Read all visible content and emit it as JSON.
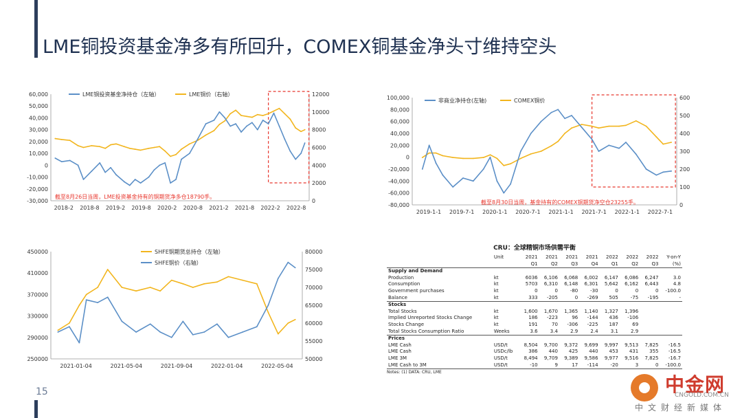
{
  "page": {
    "title": "LME铜投资基金净多有所回升，COMEX铜基金净头寸维持空头",
    "page_number": "15"
  },
  "colors": {
    "blue": "#5b8fc7",
    "gold": "#f2b51d",
    "red": "#e8372e",
    "navy": "#2d3e5c"
  },
  "chart_data": [
    {
      "type": "line",
      "legend": [
        "LME铜投资基金净持仓（左轴）",
        "LME铜价（右轴）"
      ],
      "annotation": "截至8月26日当周，LME投资基金持有的铜期货净多仓18790手。",
      "x_ticks": [
        "2018-2",
        "2018-8",
        "2019-2",
        "2019-8",
        "2020-2",
        "2020-8",
        "2021-2",
        "2021-8",
        "2022-2",
        "2022-8"
      ],
      "y_left_ticks": [
        "60,000",
        "50,000",
        "40,000",
        "30,000",
        "20,000",
        "10,000",
        "0",
        "-10,000",
        "-20,000",
        "-30,000"
      ],
      "y_right_ticks": [
        "12000",
        "10000",
        "8000",
        "6000",
        "4000",
        "2000",
        "0"
      ],
      "ylim_left": [
        -30000,
        60000
      ],
      "ylim_right": [
        0,
        12000
      ],
      "highlight_x": [
        2022.0,
        2022.67
      ],
      "series": [
        {
          "name": "LME铜投资基金净持仓（左轴）",
          "axis": "left",
          "x": [
            2018.08,
            2018.2,
            2018.35,
            2018.5,
            2018.6,
            2018.75,
            2018.9,
            2019.0,
            2019.1,
            2019.2,
            2019.35,
            2019.45,
            2019.55,
            2019.65,
            2019.8,
            2019.9,
            2020.0,
            2020.1,
            2020.2,
            2020.3,
            2020.4,
            2020.55,
            2020.7,
            2020.85,
            2021.0,
            2021.1,
            2021.2,
            2021.3,
            2021.4,
            2021.5,
            2021.6,
            2021.7,
            2021.8,
            2021.9,
            2022.0,
            2022.1,
            2022.2,
            2022.3,
            2022.4,
            2022.5,
            2022.6,
            2022.67
          ],
          "y": [
            6000,
            3000,
            4000,
            0,
            -12000,
            -5000,
            2000,
            -6000,
            -2000,
            -8000,
            -14000,
            -17000,
            -12000,
            -15000,
            -10000,
            -4000,
            0,
            2000,
            -15000,
            -12000,
            5000,
            10000,
            22000,
            35000,
            38000,
            45000,
            40000,
            33000,
            35000,
            28000,
            33000,
            36000,
            30000,
            38000,
            35000,
            44000,
            33000,
            22000,
            12000,
            5000,
            10000,
            18790
          ]
        },
        {
          "name": "LME铜价（右轴）",
          "axis": "right",
          "x": [
            2018.08,
            2018.2,
            2018.35,
            2018.5,
            2018.6,
            2018.75,
            2018.9,
            2019.0,
            2019.1,
            2019.2,
            2019.35,
            2019.45,
            2019.55,
            2019.65,
            2019.8,
            2019.9,
            2020.0,
            2020.1,
            2020.2,
            2020.3,
            2020.4,
            2020.55,
            2020.7,
            2020.85,
            2021.0,
            2021.1,
            2021.2,
            2021.3,
            2021.4,
            2021.5,
            2021.6,
            2021.7,
            2021.8,
            2021.9,
            2022.0,
            2022.1,
            2022.2,
            2022.3,
            2022.4,
            2022.5,
            2022.6,
            2022.67
          ],
          "y": [
            7000,
            6900,
            6800,
            6200,
            6000,
            6200,
            6100,
            5900,
            6300,
            6400,
            6100,
            5900,
            5800,
            5700,
            5900,
            6000,
            6100,
            5600,
            5000,
            5200,
            5800,
            6400,
            6800,
            7400,
            7900,
            8600,
            9000,
            9800,
            10200,
            9600,
            9500,
            9400,
            9700,
            9600,
            9800,
            10100,
            10400,
            9800,
            9200,
            8200,
            7800,
            8000
          ]
        }
      ]
    },
    {
      "type": "line",
      "legend": [
        "非商业净持仓(左轴)",
        "COMEX铜价"
      ],
      "annotation": "截至8月30日当周，基金持有的COMEX铜期货净空仓23255手。",
      "x_ticks": [
        "2019-1-1",
        "2019-7-1",
        "2020-1-1",
        "2020-7-1",
        "2021-1-1",
        "2021-7-1",
        "2022-1-1",
        "2022-7-1"
      ],
      "y_left_ticks": [
        "100,000",
        "80,000",
        "60,000",
        "40,000",
        "20,000",
        "0",
        "-20,000",
        "-40,000",
        "-60,000",
        "-80,000"
      ],
      "y_right_ticks": [
        "600",
        "500",
        "400",
        "300",
        "200",
        "100",
        "0"
      ],
      "ylim_left": [
        -80000,
        100000
      ],
      "ylim_right": [
        0,
        600
      ],
      "highlight_x": [
        2021.5,
        2022.67
      ],
      "series": [
        {
          "name": "非商业净持仓(左轴)",
          "axis": "left",
          "x": [
            2019.0,
            2019.1,
            2019.2,
            2019.3,
            2019.45,
            2019.6,
            2019.75,
            2019.9,
            2020.0,
            2020.1,
            2020.2,
            2020.3,
            2020.45,
            2020.6,
            2020.75,
            2020.9,
            2021.0,
            2021.1,
            2021.2,
            2021.35,
            2021.5,
            2021.6,
            2021.75,
            2021.9,
            2022.0,
            2022.15,
            2022.3,
            2022.45,
            2022.55,
            2022.67
          ],
          "y": [
            -20000,
            20000,
            -10000,
            -30000,
            -50000,
            -35000,
            -40000,
            -20000,
            0,
            -40000,
            -60000,
            -45000,
            10000,
            40000,
            60000,
            75000,
            80000,
            65000,
            70000,
            50000,
            30000,
            10000,
            20000,
            15000,
            25000,
            5000,
            -20000,
            -30000,
            -25000,
            -23255
          ]
        },
        {
          "name": "COMEX铜价",
          "axis": "right",
          "x": [
            2019.0,
            2019.1,
            2019.2,
            2019.3,
            2019.45,
            2019.6,
            2019.75,
            2019.9,
            2020.0,
            2020.1,
            2020.2,
            2020.3,
            2020.45,
            2020.6,
            2020.75,
            2020.9,
            2021.0,
            2021.1,
            2021.2,
            2021.35,
            2021.5,
            2021.6,
            2021.75,
            2021.9,
            2022.0,
            2022.15,
            2022.3,
            2022.45,
            2022.55,
            2022.67
          ],
          "y": [
            265,
            290,
            290,
            275,
            265,
            260,
            260,
            265,
            280,
            260,
            220,
            230,
            260,
            285,
            300,
            330,
            355,
            400,
            430,
            450,
            440,
            430,
            440,
            440,
            445,
            470,
            440,
            380,
            340,
            350
          ]
        }
      ]
    },
    {
      "type": "line",
      "legend": [
        "SHFE铜期货总持仓（左轴）",
        "SHFE铜价（右轴）"
      ],
      "x_ticks": [
        "2021-01-04",
        "2021-05-04",
        "2021-09-04",
        "2022-01-04",
        "2022-05-04"
      ],
      "y_left_ticks": [
        "450000",
        "410000",
        "370000",
        "330000",
        "290000",
        "250000"
      ],
      "y_right_ticks": [
        "80000",
        "75000",
        "70000",
        "65000",
        "60000",
        "55000",
        "50000"
      ],
      "ylim_left": [
        250000,
        450000
      ],
      "ylim_right": [
        50000,
        80000
      ],
      "series": [
        {
          "name": "SHFE铜期货总持仓（左轴）",
          "axis": "left",
          "x": [
            2021.0,
            2021.08,
            2021.15,
            2021.2,
            2021.28,
            2021.35,
            2021.45,
            2021.55,
            2021.65,
            2021.72,
            2021.8,
            2021.88,
            2021.95,
            2022.03,
            2022.12,
            2022.2,
            2022.3,
            2022.4,
            2022.48,
            2022.55,
            2022.62,
            2022.67
          ],
          "y": [
            300000,
            310000,
            280000,
            360000,
            355000,
            365000,
            320000,
            300000,
            315000,
            300000,
            290000,
            320000,
            295000,
            300000,
            315000,
            290000,
            300000,
            310000,
            350000,
            400000,
            430000,
            420000
          ]
        },
        {
          "name": "SHFE铜价（右轴）",
          "axis": "right",
          "x": [
            2021.0,
            2021.08,
            2021.15,
            2021.2,
            2021.28,
            2021.35,
            2021.45,
            2021.55,
            2021.65,
            2021.72,
            2021.8,
            2021.88,
            2021.95,
            2022.03,
            2022.12,
            2022.2,
            2022.3,
            2022.4,
            2022.48,
            2022.55,
            2022.62,
            2022.67
          ],
          "y": [
            58000,
            60000,
            65000,
            68000,
            70000,
            75000,
            70000,
            69000,
            70000,
            69000,
            72000,
            71000,
            70000,
            71000,
            71500,
            73000,
            72000,
            71000,
            63000,
            57000,
            60000,
            61000
          ]
        }
      ]
    },
    {
      "type": "table",
      "title": "CRU：全球精铜市场供需平衡",
      "unit_label": "Unit",
      "columns": [
        [
          "2021",
          "Q1"
        ],
        [
          "2021",
          "Q2"
        ],
        [
          "2021",
          "Q3"
        ],
        [
          "2021",
          "Q4"
        ],
        [
          "2022",
          "Q1"
        ],
        [
          "2022",
          "Q2"
        ],
        [
          "2022",
          "Q3"
        ],
        [
          "Y-on-Y",
          "(%)"
        ]
      ],
      "sections": [
        {
          "name": "Supply and Demand",
          "rows": [
            {
              "label": "Production",
              "unit": "kt",
              "values": [
                "6036",
                "6,106",
                "6,068",
                "6,002",
                "6,147",
                "6,086",
                "6,247",
                "3.0"
              ]
            },
            {
              "label": "Consumption",
              "unit": "kt",
              "values": [
                "5703",
                "6,310",
                "6,148",
                "6,301",
                "5,642",
                "6,162",
                "6,443",
                "4.8"
              ]
            },
            {
              "label": "Government purchases",
              "unit": "kt",
              "values": [
                "0",
                "0",
                "-80",
                "-30",
                "0",
                "0",
                "0",
                "-100.0"
              ]
            },
            {
              "label": "Balance",
              "unit": "kt",
              "values": [
                "333",
                "-205",
                "0",
                "-269",
                "505",
                "-75",
                "-195",
                "-"
              ]
            }
          ]
        },
        {
          "name": "Stocks",
          "rows": [
            {
              "label": "Total Stocks",
              "unit": "kt",
              "values": [
                "1,600",
                "1,670",
                "1,365",
                "1,140",
                "1,327",
                "1,396",
                "",
                ""
              ]
            },
            {
              "label": "Implied Unreported Stocks Change",
              "unit": "kt",
              "values": [
                "186",
                "-223",
                "96",
                "-144",
                "436",
                "-106",
                "",
                ""
              ]
            },
            {
              "label": "Stocks Change",
              "unit": "kt",
              "values": [
                "191",
                "70",
                "-306",
                "-225",
                "187",
                "69",
                "",
                ""
              ]
            },
            {
              "label": "Total Stocks Consumption Ratio",
              "unit": "Weeks",
              "values": [
                "3.6",
                "3.4",
                "2.9",
                "2.4",
                "3.1",
                "2.9",
                "",
                ""
              ]
            }
          ]
        },
        {
          "name": "Prices",
          "rows": [
            {
              "label": "LME Cash",
              "unit": "USD/t",
              "values": [
                "8,504",
                "9,700",
                "9,372",
                "9,699",
                "9,997",
                "9,513",
                "7,825",
                "-16.5"
              ]
            },
            {
              "label": "LME Cash",
              "unit": "USDc/lb",
              "values": [
                "386",
                "440",
                "425",
                "440",
                "453",
                "431",
                "355",
                "-16.5"
              ]
            },
            {
              "label": "LME 3M",
              "unit": "USD/t",
              "values": [
                "8,494",
                "9,709",
                "9,389",
                "9,586",
                "9,977",
                "9,516",
                "7,825",
                "-16.7"
              ]
            },
            {
              "label": "LME Cash to 3M",
              "unit": "USD/t",
              "values": [
                "-10",
                "9",
                "17",
                "-114",
                "-20",
                "3",
                "0",
                "-100.0"
              ]
            }
          ]
        }
      ],
      "note": "Notes: (1) DATA: CRU, LME"
    }
  ],
  "watermark": {
    "name": "中金网",
    "url": "CNGOLD.COM.CN",
    "sub": "中文财经新媒体"
  }
}
